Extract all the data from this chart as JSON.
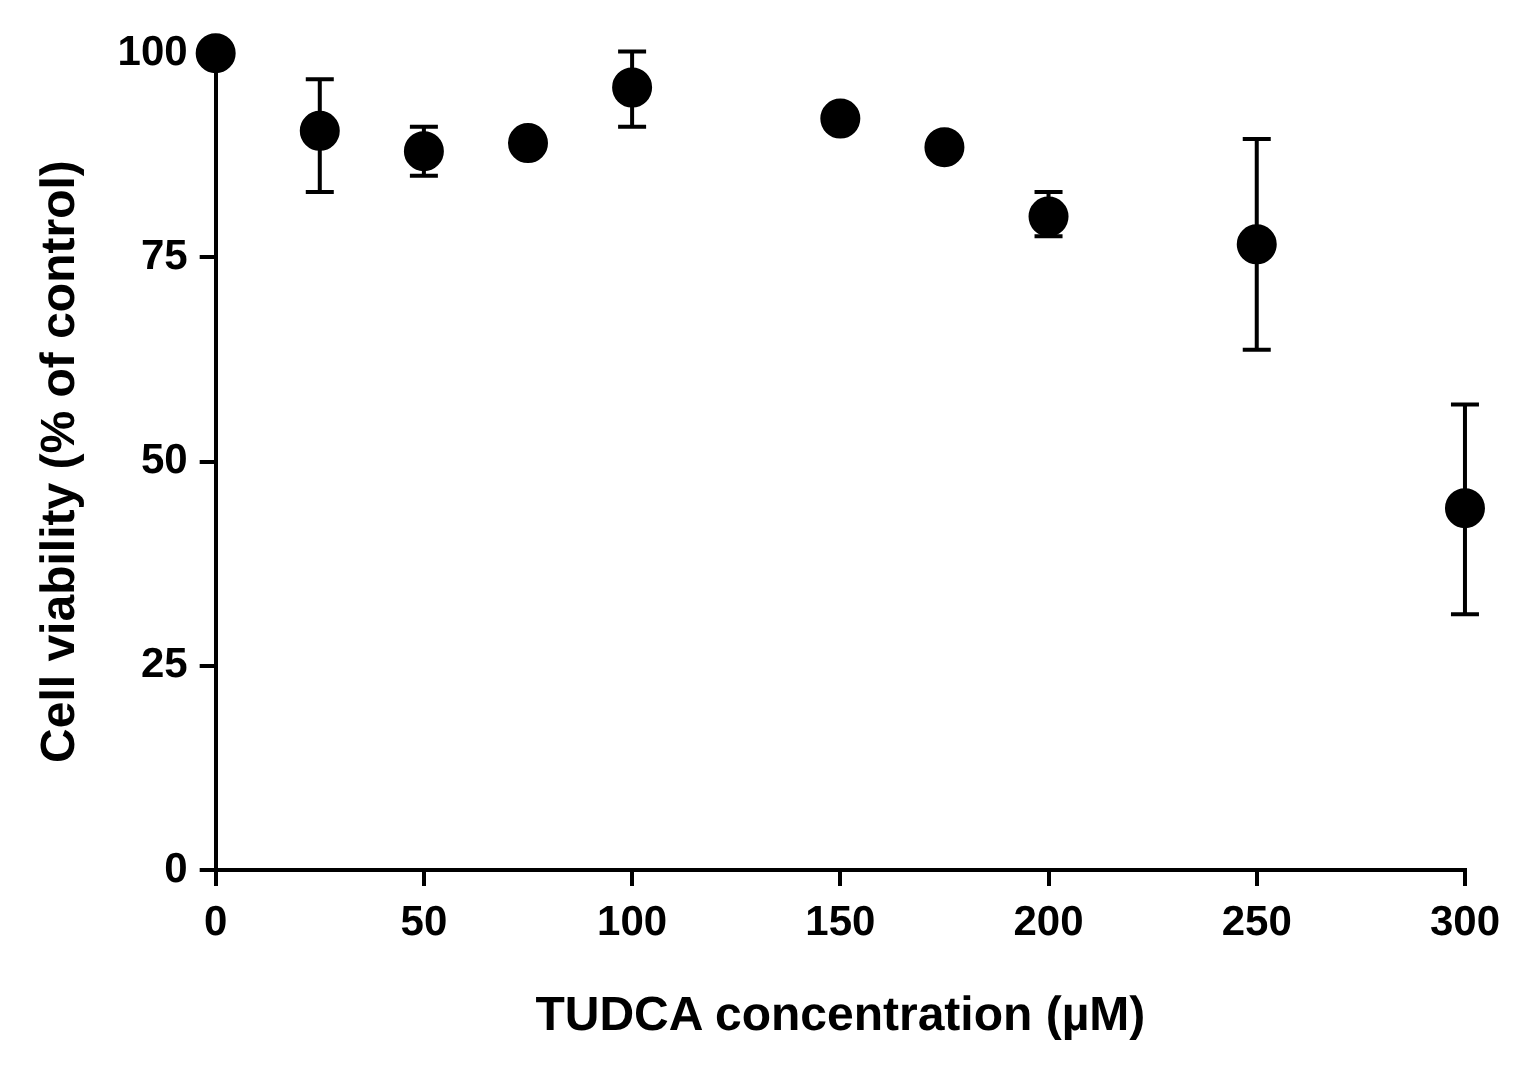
{
  "chart_data": {
    "type": "scatter",
    "xlabel": "TUDCA concentration (µM)",
    "ylabel": "Cell viability (% of control)",
    "x": [
      0,
      25,
      50,
      75,
      100,
      150,
      175,
      200,
      250,
      300
    ],
    "series": [
      {
        "color": "#000000",
        "values": [
          100,
          90.5,
          88,
          89,
          95.8,
          92,
          88.5,
          80,
          76.6,
          44.3
        ],
        "errors": [
          null,
          [
            83,
            96.8
          ],
          [
            85,
            91
          ],
          null,
          [
            91,
            100.2
          ],
          null,
          null,
          [
            77.6,
            83
          ],
          [
            63.7,
            89.5
          ],
          [
            31.3,
            57
          ]
        ]
      }
    ],
    "xlim": [
      0,
      300
    ],
    "xticks": [
      0,
      50,
      100,
      150,
      200,
      250,
      300
    ],
    "ylim": [
      0,
      100
    ],
    "yticks": [
      0,
      25,
      50,
      75,
      100
    ],
    "grid": false,
    "legend": false,
    "marker": "circle"
  }
}
